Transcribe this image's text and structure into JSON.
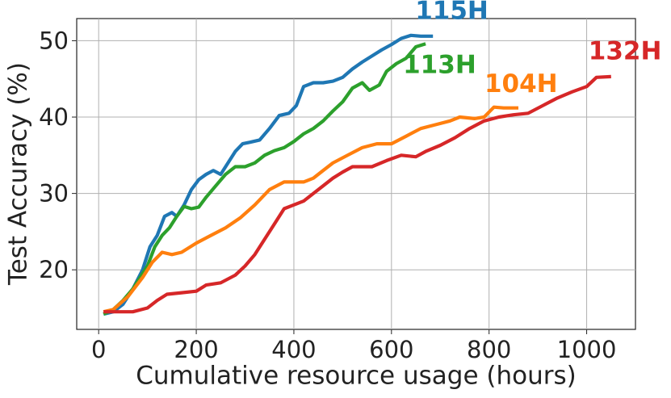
{
  "chart_data": {
    "type": "line",
    "xlabel": "Cumulative resource usage (hours)",
    "ylabel": "Test Accuracy (%)",
    "xlim": [
      -45,
      1100
    ],
    "ylim": [
      12.2,
      52.9
    ],
    "xticks": [
      0,
      200,
      400,
      600,
      800,
      1000
    ],
    "yticks": [
      20,
      30,
      40,
      50
    ],
    "grid": true,
    "series": [
      {
        "name": "115H",
        "color": "#1f77b4",
        "x": [
          10,
          30,
          50,
          70,
          90,
          105,
          120,
          135,
          150,
          160,
          175,
          190,
          205,
          220,
          235,
          250,
          265,
          280,
          295,
          310,
          330,
          350,
          370,
          390,
          405,
          420,
          440,
          460,
          480,
          500,
          520,
          540,
          560,
          580,
          600,
          620,
          640,
          660,
          685
        ],
        "values": [
          14.2,
          14.5,
          15.5,
          17.5,
          20,
          23,
          24.5,
          27,
          27.5,
          27,
          28.5,
          30.5,
          31.8,
          32.5,
          33,
          32.5,
          34,
          35.5,
          36.5,
          36.7,
          37,
          38.5,
          40.2,
          40.5,
          41.5,
          44,
          44.5,
          44.5,
          44.7,
          45.2,
          46.3,
          47.2,
          48,
          48.8,
          49.5,
          50.3,
          50.7,
          50.6,
          50.6
        ]
      },
      {
        "name": "113H",
        "color": "#2ca02c",
        "x": [
          10,
          30,
          50,
          70,
          85,
          100,
          115,
          130,
          145,
          160,
          175,
          190,
          205,
          220,
          240,
          260,
          280,
          300,
          320,
          340,
          360,
          380,
          400,
          420,
          440,
          460,
          480,
          500,
          520,
          540,
          555,
          575,
          590,
          610,
          630,
          650,
          670
        ],
        "values": [
          14.2,
          14.8,
          16,
          17.5,
          19,
          20.5,
          23,
          24.5,
          25.5,
          27,
          28.3,
          28,
          28.2,
          29.5,
          31,
          32.5,
          33.5,
          33.5,
          34,
          35,
          35.6,
          36,
          36.8,
          37.8,
          38.5,
          39.5,
          40.8,
          42,
          43.8,
          44.5,
          43.5,
          44.2,
          46,
          47,
          47.7,
          49.2,
          49.6
        ]
      },
      {
        "name": "104H",
        "color": "#ff7f0e",
        "x": [
          10,
          30,
          60,
          90,
          110,
          130,
          150,
          170,
          200,
          230,
          260,
          290,
          320,
          350,
          380,
          400,
          420,
          440,
          460,
          480,
          510,
          540,
          570,
          600,
          630,
          660,
          690,
          720,
          740,
          770,
          790,
          810,
          830,
          860
        ],
        "values": [
          14.5,
          14.8,
          16.5,
          19,
          21,
          22.3,
          22,
          22.3,
          23.5,
          24.5,
          25.5,
          26.8,
          28.5,
          30.5,
          31.5,
          31.5,
          31.5,
          32,
          33,
          34,
          35,
          36,
          36.5,
          36.5,
          37.5,
          38.5,
          39,
          39.5,
          40,
          39.8,
          40,
          41.3,
          41.2,
          41.2
        ]
      },
      {
        "name": "132H",
        "color": "#d62728",
        "x": [
          10,
          40,
          70,
          100,
          120,
          140,
          170,
          200,
          220,
          250,
          280,
          300,
          320,
          340,
          360,
          380,
          400,
          420,
          440,
          460,
          480,
          500,
          520,
          560,
          590,
          620,
          650,
          670,
          700,
          730,
          760,
          790,
          820,
          850,
          880,
          910,
          940,
          970,
          1000,
          1020,
          1050
        ],
        "values": [
          14.5,
          14.5,
          14.5,
          15,
          16,
          16.8,
          17,
          17.2,
          18,
          18.3,
          19.3,
          20.5,
          22,
          24,
          26,
          28,
          28.5,
          29,
          30,
          31,
          32,
          32.8,
          33.5,
          33.5,
          34.3,
          35,
          34.8,
          35.5,
          36.3,
          37.3,
          38.5,
          39.5,
          40,
          40.3,
          40.5,
          41.5,
          42.5,
          43.3,
          44,
          45.2,
          45.3
        ]
      }
    ]
  }
}
